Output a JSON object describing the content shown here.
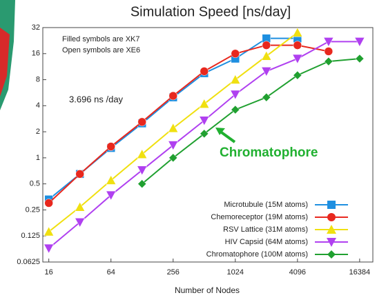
{
  "chart_data": {
    "type": "line",
    "title": "Simulation Speed [ns/day]",
    "x_label": "Number of Nodes",
    "x_log_base": 2,
    "y_log_base": 2,
    "xlim": [
      14,
      22000
    ],
    "xticks": [
      16,
      64,
      256,
      1024,
      4096,
      16384
    ],
    "ylim": [
      0.0625,
      32
    ],
    "yticks": [
      0.0625,
      0.125,
      0.25,
      0.5,
      1,
      2,
      4,
      8,
      16,
      32
    ],
    "x": [
      16,
      32,
      64,
      128,
      256,
      512,
      1024,
      2048,
      4096,
      8192,
      16384
    ],
    "legend": "lower right",
    "annotations": [
      "Filled symbols are XK7",
      "Open symbols are XE6",
      "3.696 ns /day",
      "Chromatophore"
    ],
    "series": [
      {
        "name": "Microtubule (15M atoms)",
        "color": "#1e8fe0",
        "marker": "square",
        "values": [
          0.33,
          0.65,
          1.3,
          2.5,
          5,
          9.5,
          14,
          24,
          24,
          null,
          null
        ]
      },
      {
        "name": "Chemoreceptor (19M atoms)",
        "color": "#e8281e",
        "marker": "circle",
        "values": [
          0.3,
          0.65,
          1.35,
          2.6,
          5.2,
          10,
          16,
          20,
          20,
          17,
          null
        ]
      },
      {
        "name": "RSV Lattice (31M atoms)",
        "color": "#f0e010",
        "marker": "triangle-up",
        "values": [
          0.14,
          0.27,
          0.55,
          1.1,
          2.2,
          4.2,
          8,
          15,
          28,
          null,
          null
        ]
      },
      {
        "name": "HIV Capsid (64M atoms)",
        "color": "#b040f0",
        "marker": "triangle-down",
        "values": [
          0.09,
          0.18,
          0.37,
          0.72,
          1.4,
          2.7,
          5.4,
          10,
          14,
          22,
          22
        ]
      },
      {
        "name": "Chromatophore (100M atoms)",
        "color": "#20a030",
        "marker": "diamond",
        "values": [
          null,
          null,
          null,
          0.5,
          1,
          1.9,
          3.6,
          5,
          9,
          13,
          14
        ]
      }
    ]
  }
}
